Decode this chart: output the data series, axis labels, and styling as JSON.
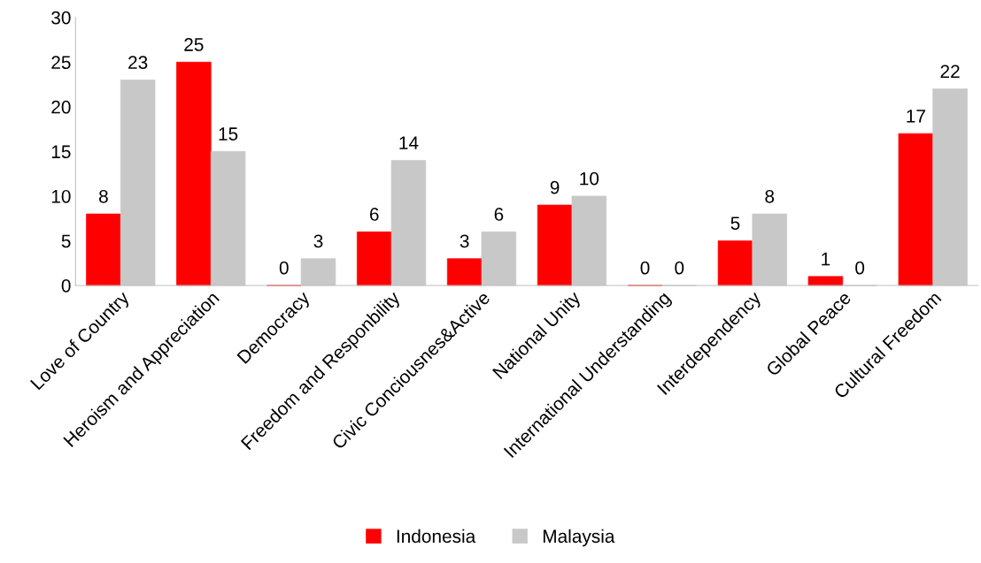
{
  "chart_data": {
    "type": "bar",
    "categories": [
      "Love of Country",
      "Heroism and Appreciation",
      "Democracy",
      "Freedom and Responbility",
      "Civic Conciousnes&Active",
      "National Unity",
      "International Understanding",
      "Interdependency",
      "Global Peace",
      "Cultural Freedom"
    ],
    "series": [
      {
        "name": "Indonesia",
        "color": "#ff0000",
        "values": [
          8,
          25,
          0,
          6,
          3,
          9,
          0,
          5,
          1,
          17
        ]
      },
      {
        "name": "Malaysia",
        "color": "#c8c8c8",
        "values": [
          23,
          15,
          3,
          14,
          6,
          10,
          0,
          8,
          0,
          22
        ]
      }
    ],
    "ylim": [
      0,
      30
    ],
    "yticks": [
      0,
      5,
      10,
      15,
      20,
      25,
      30
    ],
    "grid": false,
    "legend": "bottom",
    "data_labels": true
  }
}
